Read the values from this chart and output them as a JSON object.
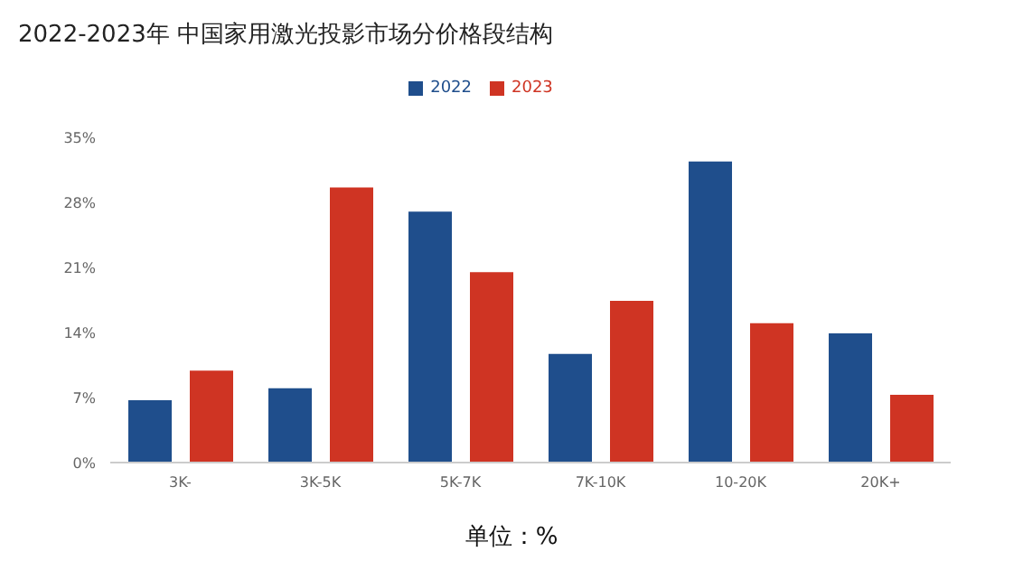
{
  "chart_data": {
    "type": "bar",
    "title": "2022-2023年  中国家用激光投影市场分价格段结构",
    "categories": [
      "3K-",
      "3K-5K",
      "5K-7K",
      "7K-10K",
      "10-20K",
      "20K+"
    ],
    "series": [
      {
        "name": "2022",
        "color": "#1f4e8c",
        "values": [
          6.7,
          8.0,
          27.0,
          11.7,
          32.4,
          13.9
        ]
      },
      {
        "name": "2023",
        "color": "#cf3423",
        "values": [
          9.9,
          29.6,
          20.5,
          17.4,
          15.0,
          7.3
        ]
      }
    ],
    "ylim": [
      0,
      35
    ],
    "yticks": [
      {
        "value": 0,
        "label": "0%"
      },
      {
        "value": 7,
        "label": "7%"
      },
      {
        "value": 14,
        "label": "14%"
      },
      {
        "value": 21,
        "label": "21%"
      },
      {
        "value": 28,
        "label": "28%"
      },
      {
        "value": 35,
        "label": "35%"
      }
    ],
    "legend": "top",
    "annotations": [
      "单位：%"
    ]
  }
}
